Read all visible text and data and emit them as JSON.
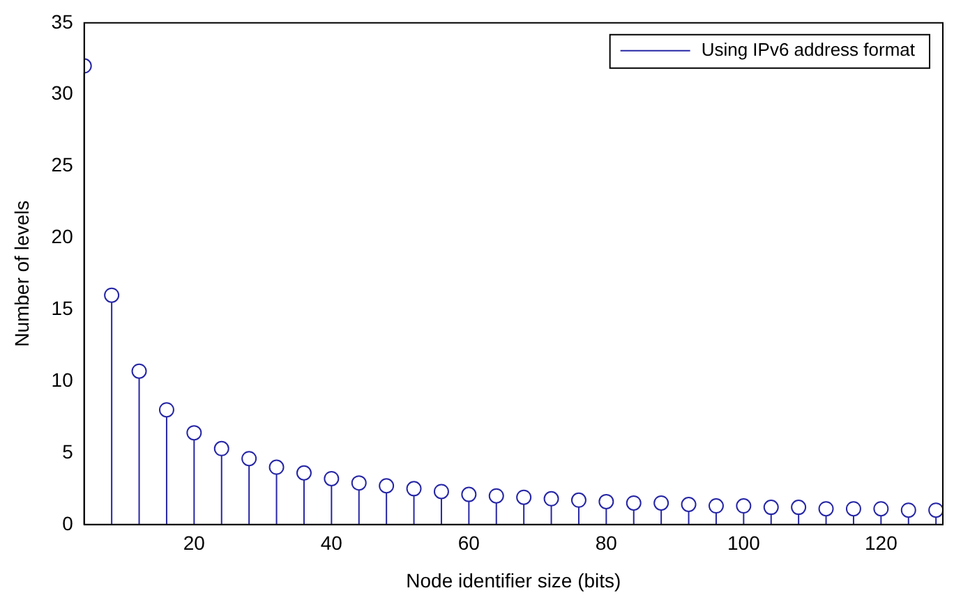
{
  "chart_data": {
    "type": "lollipop",
    "xlabel": "Node identifier size (bits)",
    "ylabel": "Number of levels",
    "x": [
      4,
      8,
      12,
      16,
      20,
      24,
      28,
      32,
      36,
      40,
      44,
      48,
      52,
      56,
      60,
      64,
      68,
      72,
      76,
      80,
      84,
      88,
      92,
      96,
      100,
      104,
      108,
      112,
      116,
      120,
      124,
      128
    ],
    "series": [
      {
        "name": "Using IPv6 address format",
        "color": "#2626a6",
        "values": [
          32,
          16,
          10.7,
          8,
          6.4,
          5.3,
          4.6,
          4,
          3.6,
          3.2,
          2.9,
          2.7,
          2.5,
          2.3,
          2.1,
          2,
          1.9,
          1.8,
          1.7,
          1.6,
          1.5,
          1.5,
          1.4,
          1.3,
          1.3,
          1.2,
          1.2,
          1.1,
          1.1,
          1.1,
          1.0,
          1
        ]
      }
    ],
    "xlim": [
      4,
      129
    ],
    "xticks": [
      20,
      40,
      60,
      80,
      100,
      120
    ],
    "ylim": [
      0,
      35
    ],
    "yticks": [
      0,
      5,
      10,
      15,
      20,
      25,
      30,
      35
    ],
    "legend": "top right",
    "marker": "circle"
  }
}
